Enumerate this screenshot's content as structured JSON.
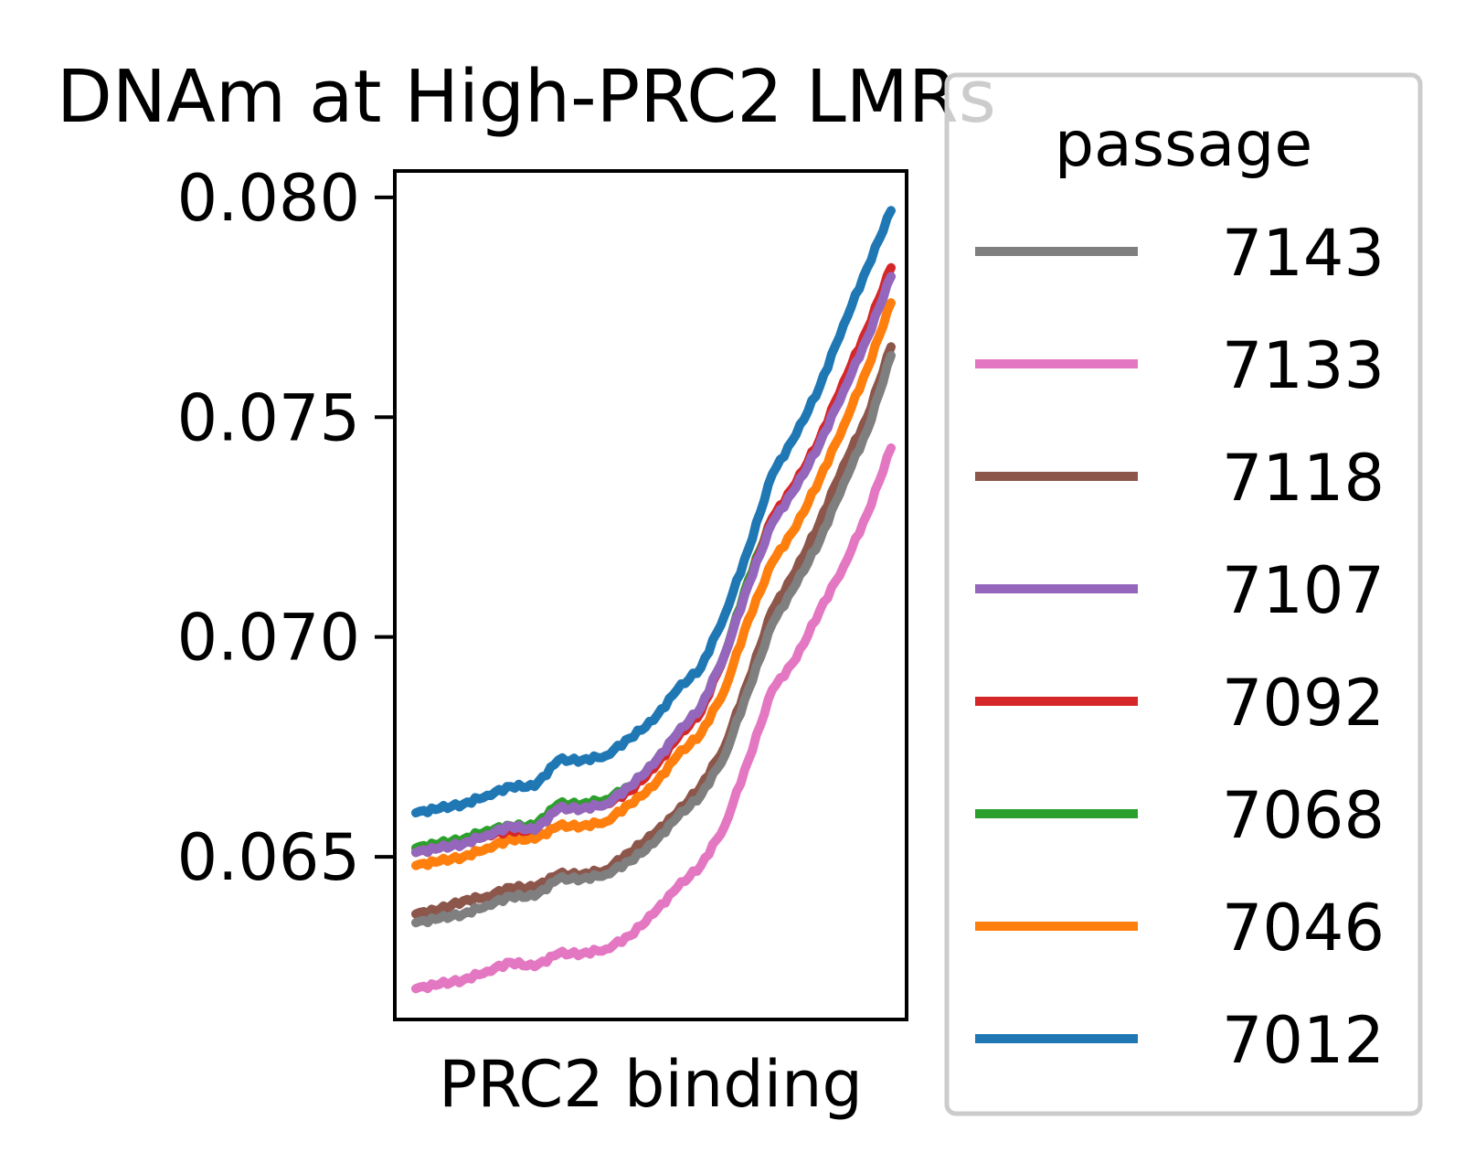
{
  "chart_data": {
    "type": "line",
    "title": "DNAm at High-PRC2 LMRs",
    "xlabel": "PRC2 binding",
    "ylabel": "",
    "ylim": [
      0.0613,
      0.0806
    ],
    "yticks": [
      0.065,
      0.07,
      0.075,
      0.08
    ],
    "ytick_labels": [
      "0.065",
      "0.070",
      "0.075",
      "0.080"
    ],
    "x_ticks_shown": false,
    "grid": false,
    "legend": {
      "title": "passage",
      "placement": "right, outside plot"
    },
    "x": [
      0,
      0.05,
      0.1,
      0.15,
      0.2,
      0.25,
      0.3,
      0.35,
      0.4,
      0.45,
      0.5,
      0.55,
      0.6,
      0.65,
      0.7,
      0.75,
      0.8,
      0.85,
      0.9,
      0.95,
      1.0
    ],
    "series": [
      {
        "name": "7143",
        "color": "#7f7f7f",
        "values": [
          0.0635,
          0.0636,
          0.0637,
          0.0639,
          0.0641,
          0.0641,
          0.0645,
          0.0645,
          0.0646,
          0.0649,
          0.0653,
          0.0659,
          0.0664,
          0.0673,
          0.0688,
          0.0703,
          0.0712,
          0.0722,
          0.0735,
          0.0747,
          0.0764
        ]
      },
      {
        "name": "7133",
        "color": "#e377c2",
        "values": [
          0.062,
          0.0621,
          0.0622,
          0.0624,
          0.0626,
          0.0625,
          0.0628,
          0.0628,
          0.0629,
          0.0632,
          0.0637,
          0.0643,
          0.0648,
          0.0657,
          0.0672,
          0.0688,
          0.0695,
          0.0706,
          0.0716,
          0.0728,
          0.0743
        ]
      },
      {
        "name": "7118",
        "color": "#8c564b",
        "values": [
          0.0637,
          0.0638,
          0.064,
          0.0641,
          0.0643,
          0.0643,
          0.0646,
          0.0646,
          0.0647,
          0.0651,
          0.0655,
          0.066,
          0.0666,
          0.0675,
          0.069,
          0.0706,
          0.0715,
          0.0726,
          0.0739,
          0.075,
          0.0766
        ]
      },
      {
        "name": "7107",
        "color": "#9467bd",
        "values": [
          0.0651,
          0.0652,
          0.0653,
          0.0655,
          0.0657,
          0.0656,
          0.0661,
          0.0661,
          0.0662,
          0.0666,
          0.0671,
          0.0678,
          0.0684,
          0.0696,
          0.0712,
          0.0726,
          0.0734,
          0.0744,
          0.0756,
          0.0768,
          0.0782
        ]
      },
      {
        "name": "7092",
        "color": "#d62728",
        "values": [
          0.0651,
          0.0652,
          0.0653,
          0.0655,
          0.0656,
          0.0656,
          0.0661,
          0.0661,
          0.0662,
          0.0665,
          0.067,
          0.0677,
          0.0683,
          0.0696,
          0.0712,
          0.0727,
          0.0735,
          0.0745,
          0.0758,
          0.077,
          0.0784
        ]
      },
      {
        "name": "7068",
        "color": "#2ca02c",
        "values": [
          0.0652,
          0.0653,
          0.0654,
          0.0656,
          0.0657,
          0.0657,
          0.0662,
          0.0662,
          0.0663,
          0.0666,
          0.0671,
          0.0678,
          0.0684,
          0.0696,
          0.0713,
          0.0727,
          0.0734,
          0.0744,
          0.0757,
          0.0769,
          0.0782
        ]
      },
      {
        "name": "7046",
        "color": "#ff7f0e",
        "values": [
          0.0648,
          0.0649,
          0.065,
          0.0652,
          0.0654,
          0.0654,
          0.0657,
          0.0657,
          0.0658,
          0.0662,
          0.0666,
          0.0673,
          0.0678,
          0.0688,
          0.0704,
          0.0717,
          0.0725,
          0.0736,
          0.0748,
          0.0761,
          0.0776
        ]
      },
      {
        "name": "7012",
        "color": "#1f77b4",
        "values": [
          0.066,
          0.0661,
          0.0662,
          0.0664,
          0.0666,
          0.0666,
          0.0672,
          0.0672,
          0.0673,
          0.0677,
          0.0681,
          0.0688,
          0.0693,
          0.0705,
          0.072,
          0.0737,
          0.0746,
          0.0757,
          0.0771,
          0.0784,
          0.0797
        ]
      }
    ]
  }
}
